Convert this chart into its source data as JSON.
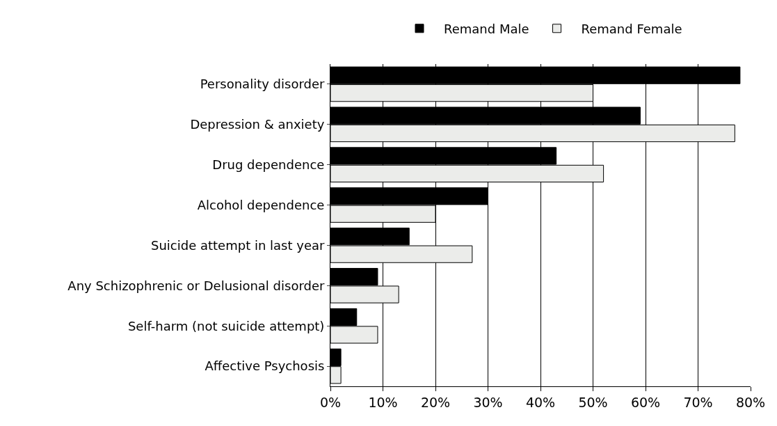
{
  "chart_data": {
    "type": "bar",
    "orientation": "horizontal",
    "categories": [
      "Personality disorder",
      "Depression & anxiety",
      "Drug dependence",
      "Alcohol dependence",
      "Suicide attempt in last year",
      "Any Schizophrenic or Delusional disorder",
      "Self-harm (not suicide attempt)",
      "Affective Psychosis"
    ],
    "series": [
      {
        "name": "Remand Male",
        "color": "#000000",
        "values": [
          78,
          59,
          43,
          30,
          15,
          9,
          5,
          2
        ]
      },
      {
        "name": "Remand Female",
        "color": "#ebecea",
        "values": [
          50,
          77,
          52,
          20,
          27,
          13,
          9,
          2
        ]
      }
    ],
    "xlim": [
      0,
      80
    ],
    "xticks": [
      {
        "value": 0,
        "label": "0%"
      },
      {
        "value": 10,
        "label": "10%"
      },
      {
        "value": 20,
        "label": "20%"
      },
      {
        "value": 30,
        "label": "30%"
      },
      {
        "value": 40,
        "label": "40%"
      },
      {
        "value": 50,
        "label": "50%"
      },
      {
        "value": 60,
        "label": "60%"
      },
      {
        "value": 70,
        "label": "70%"
      },
      {
        "value": 80,
        "label": "80%"
      }
    ],
    "grid": "x",
    "legend": "top"
  }
}
